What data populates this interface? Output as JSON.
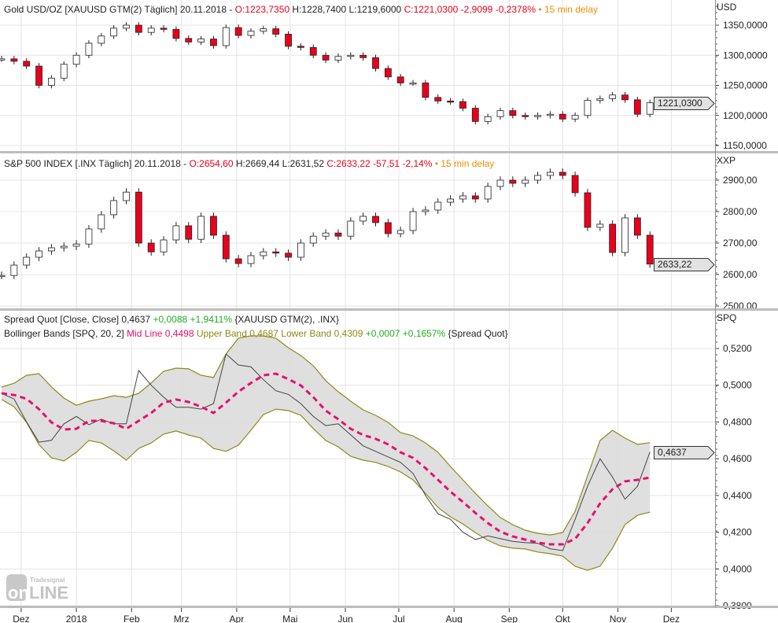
{
  "panels": {
    "gold": {
      "header": {
        "name": "Gold USD/OZ [XAUUSD GTM(2) Täglich] 20.11.2018 -",
        "open": "O:1223,7350",
        "high": "H:1228,7400",
        "low": "L:1219,6000",
        "close": "C:1221,0300",
        "change": "-2,9099",
        "change_pct": "-0,2378%",
        "delay": "• 15 min delay"
      },
      "unit": "USD",
      "last_price_label": "1221,0300",
      "last_price": 1221.03,
      "ticks": [
        "1150,0000",
        "1200,0000",
        "1250,0000",
        "1300,0000",
        "1350,0000"
      ],
      "tick_values": [
        1150,
        1200,
        1250,
        1300,
        1350
      ]
    },
    "sp500": {
      "header": {
        "name": "S&P 500 INDEX [.INX Täglich] 20.11.2018 -",
        "open": "O:2654,60",
        "high": "H:2669,44",
        "low": "L:2631,52",
        "close": "C:2633,22",
        "change": "-57,51",
        "change_pct": "-2,14%",
        "delay": "• 15 min delay"
      },
      "unit": "XXP",
      "last_price_label": "2633,22",
      "last_price": 2633.22,
      "ticks": [
        "2500,00",
        "2600,00",
        "2700,00",
        "2800,00",
        "2900,00"
      ],
      "tick_values": [
        2500,
        2600,
        2700,
        2800,
        2900
      ]
    },
    "spread": {
      "header1": {
        "name": "Spread Quot [Close, Close]",
        "value": "0,4637",
        "change": "+0,0088",
        "change_pct": "+1,9411%",
        "source": "{XAUUSD GTM(2), .INX}"
      },
      "header2": {
        "name": "Bollinger Bands [SPQ, 20, 2]",
        "mid": "Mid Line 0,4498",
        "upper": "Upper Band 0,4687",
        "lower": "Lower Band 0,4309",
        "change": "+0,0007",
        "change_pct": "+0,1657%",
        "source": "{Spread Quot}"
      },
      "unit": "SPQ",
      "last_price_label": "0,4637",
      "last_price": 0.4637,
      "ticks": [
        "0,3800",
        "0,4000",
        "0,4200",
        "0,4400",
        "0,4600",
        "0,4800",
        "0,5000",
        "0,5200"
      ],
      "tick_values": [
        0.38,
        0.4,
        0.42,
        0.44,
        0.46,
        0.48,
        0.5,
        0.52
      ]
    }
  },
  "x_axis": {
    "labels": [
      "Dez",
      "2018",
      "Feb",
      "Mrz",
      "Apr",
      "Mai",
      "Jun",
      "Jul",
      "Aug",
      "Sep",
      "Okt",
      "Nov",
      "Dez"
    ],
    "dates": [
      "2017-12-01",
      "2018-01-01",
      "2018-02-01",
      "2018-03-01",
      "2018-04-01",
      "2018-05-01",
      "2018-06-01",
      "2018-07-01",
      "2018-08-01",
      "2018-09-01",
      "2018-10-01",
      "2018-11-01",
      "2018-12-01"
    ]
  },
  "logo": {
    "brand": "Tradesignal",
    "text": "onLine"
  },
  "colors": {
    "up_candle": "#ffffff",
    "down_candle": "#e8001c",
    "wick": "#222222",
    "mid_line": "#e8106c",
    "band_line": "#8c8a18",
    "band_fill": "#dcdcdc",
    "spread_line": "#444444",
    "grid": "#e4e4e4"
  },
  "chart_data": [
    {
      "type": "candlestick",
      "title": "Gold USD/OZ [XAUUSD GTM(2) Täglich]",
      "ylabel": "USD",
      "ylim": [
        1130,
        1375
      ],
      "grid": true,
      "x": [
        "2017-11-20",
        "2017-11-27",
        "2017-12-04",
        "2017-12-11",
        "2017-12-18",
        "2017-12-25",
        "2018-01-01",
        "2018-01-08",
        "2018-01-15",
        "2018-01-22",
        "2018-01-29",
        "2018-02-05",
        "2018-02-12",
        "2018-02-19",
        "2018-02-26",
        "2018-03-05",
        "2018-03-12",
        "2018-03-19",
        "2018-03-26",
        "2018-04-02",
        "2018-04-09",
        "2018-04-16",
        "2018-04-23",
        "2018-04-30",
        "2018-05-07",
        "2018-05-14",
        "2018-05-21",
        "2018-05-28",
        "2018-06-04",
        "2018-06-11",
        "2018-06-18",
        "2018-06-25",
        "2018-07-02",
        "2018-07-09",
        "2018-07-16",
        "2018-07-23",
        "2018-07-30",
        "2018-08-06",
        "2018-08-13",
        "2018-08-20",
        "2018-08-27",
        "2018-09-03",
        "2018-09-10",
        "2018-09-17",
        "2018-09-24",
        "2018-10-01",
        "2018-10-08",
        "2018-10-15",
        "2018-10-22",
        "2018-10-29",
        "2018-11-05",
        "2018-11-12",
        "2018-11-19"
      ],
      "close": [
        1294,
        1290,
        1282,
        1250,
        1262,
        1285,
        1300,
        1320,
        1332,
        1345,
        1350,
        1338,
        1345,
        1343,
        1328,
        1322,
        1327,
        1316,
        1346,
        1333,
        1340,
        1344,
        1335,
        1315,
        1313,
        1300,
        1292,
        1298,
        1300,
        1296,
        1278,
        1264,
        1254,
        1254,
        1230,
        1224,
        1223,
        1212,
        1190,
        1198,
        1208,
        1200,
        1198,
        1200,
        1202,
        1194,
        1200,
        1225,
        1228,
        1234,
        1226,
        1202,
        1221.03
      ]
    },
    {
      "type": "candlestick",
      "title": "S&P 500 INDEX [.INX Täglich]",
      "ylabel": "XXP",
      "ylim": [
        2490,
        2960
      ],
      "grid": true,
      "x": "same as gold",
      "close": [
        2597,
        2630,
        2655,
        2675,
        2685,
        2690,
        2697,
        2745,
        2790,
        2835,
        2862,
        2700,
        2672,
        2710,
        2755,
        2712,
        2785,
        2725,
        2650,
        2635,
        2660,
        2672,
        2668,
        2655,
        2700,
        2722,
        2732,
        2722,
        2770,
        2785,
        2765,
        2730,
        2740,
        2800,
        2805,
        2830,
        2840,
        2850,
        2840,
        2880,
        2900,
        2890,
        2900,
        2915,
        2925,
        2915,
        2860,
        2750,
        2760,
        2670,
        2780,
        2725,
        2633.22
      ]
    },
    {
      "type": "line",
      "title": "Spread Quot / Bollinger Bands [SPQ, 20, 2]",
      "ylabel": "SPQ",
      "ylim": [
        0.38,
        0.5335
      ],
      "grid": true,
      "x": "same as gold",
      "series": [
        {
          "name": "Spread Quot",
          "values": [
            0.4956,
            0.4925,
            0.48,
            0.469,
            0.47,
            0.479,
            0.483,
            0.4785,
            0.4815,
            0.479,
            0.479,
            0.508,
            0.5,
            0.4935,
            0.488,
            0.488,
            0.487,
            0.49,
            0.517,
            0.511,
            0.51,
            0.503,
            0.497,
            0.495,
            0.49,
            0.483,
            0.478,
            0.479,
            0.473,
            0.467,
            0.464,
            0.461,
            0.458,
            0.452,
            0.44,
            0.43,
            0.427,
            0.42,
            0.416,
            0.418,
            0.4165,
            0.415,
            0.4143,
            0.414,
            0.411,
            0.41,
            0.427,
            0.445,
            0.46,
            0.45,
            0.438,
            0.445,
            0.4637
          ]
        },
        {
          "name": "Mid Line",
          "values": [
            0.4956,
            0.4947,
            0.4926,
            0.487,
            0.4798,
            0.4759,
            0.4763,
            0.4806,
            0.4806,
            0.4793,
            0.4763,
            0.4806,
            0.4849,
            0.4905,
            0.4922,
            0.4909,
            0.4883,
            0.4849,
            0.4905,
            0.4965,
            0.5012,
            0.5054,
            0.5063,
            0.5033,
            0.4999,
            0.4935,
            0.4862,
            0.4815,
            0.4763,
            0.4729,
            0.4708,
            0.4678,
            0.4635,
            0.4605,
            0.4549,
            0.4485,
            0.4421,
            0.4365,
            0.4305,
            0.425,
            0.4203,
            0.4177,
            0.416,
            0.4143,
            0.4134,
            0.4134,
            0.4164,
            0.425,
            0.4357,
            0.4434,
            0.4477,
            0.4485,
            0.4498
          ]
        },
        {
          "name": "Upper Band",
          "values": [
            0.499,
            0.5011,
            0.5054,
            0.5063,
            0.4991,
            0.493,
            0.4891,
            0.4913,
            0.4926,
            0.4943,
            0.4934,
            0.4956,
            0.5012,
            0.5076,
            0.5093,
            0.5089,
            0.5054,
            0.5042,
            0.517,
            0.5256,
            0.5269,
            0.5268,
            0.5256,
            0.5204,
            0.5162,
            0.5106,
            0.5025,
            0.4965,
            0.4913,
            0.4866,
            0.4836,
            0.4798,
            0.4742,
            0.4725,
            0.4686,
            0.4635,
            0.4558,
            0.4485,
            0.4412,
            0.4344,
            0.428,
            0.4241,
            0.4211,
            0.4194,
            0.4185,
            0.4198,
            0.4314,
            0.4507,
            0.4699,
            0.4755,
            0.4712,
            0.4678,
            0.4687
          ]
        },
        {
          "name": "Lower Band",
          "values": [
            0.4922,
            0.4883,
            0.4798,
            0.4677,
            0.4605,
            0.4588,
            0.4635,
            0.4699,
            0.4686,
            0.4643,
            0.4592,
            0.4656,
            0.4686,
            0.4734,
            0.4751,
            0.4729,
            0.4712,
            0.4656,
            0.464,
            0.4674,
            0.4755,
            0.484,
            0.487,
            0.4862,
            0.4836,
            0.4764,
            0.4699,
            0.4665,
            0.4613,
            0.4592,
            0.458,
            0.4558,
            0.4528,
            0.4485,
            0.4412,
            0.4335,
            0.4284,
            0.4245,
            0.4198,
            0.4156,
            0.4126,
            0.4113,
            0.4109,
            0.4092,
            0.4083,
            0.407,
            0.4014,
            0.3993,
            0.4015,
            0.4113,
            0.4242,
            0.4292,
            0.4309
          ]
        }
      ]
    }
  ]
}
